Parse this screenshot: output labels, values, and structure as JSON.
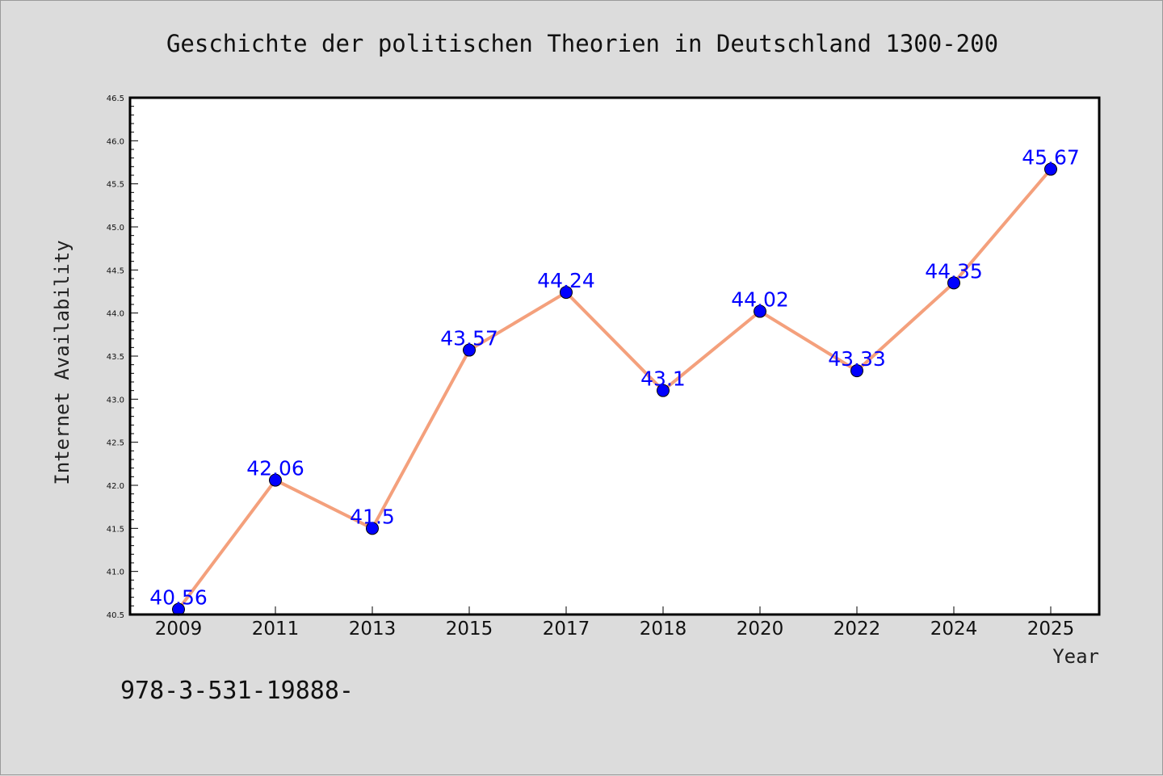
{
  "chart_data": {
    "type": "line",
    "title": "Geschichte der politischen Theorien in Deutschland 1300-200",
    "xlabel": "Year",
    "ylabel": "Internet Availability",
    "categories": [
      "2009",
      "2011",
      "2013",
      "2015",
      "2017",
      "2018",
      "2020",
      "2022",
      "2024",
      "2025"
    ],
    "series": [
      {
        "values": [
          40.56,
          42.06,
          41.5,
          43.57,
          44.24,
          43.1,
          44.02,
          43.33,
          44.35,
          45.67
        ],
        "labels": [
          "40.56",
          "42.06",
          "41.5",
          "43.57",
          "44.24",
          "43.1",
          "44.02",
          "43.33",
          "44.35",
          "45.67"
        ]
      }
    ],
    "ylim": [
      40.5,
      46.5
    ],
    "yticks": [
      "40.5",
      "41.0",
      "41.5",
      "42.0",
      "42.5",
      "43.0",
      "43.5",
      "44.0",
      "44.5",
      "45.0",
      "45.5",
      "46.0",
      "46.5"
    ],
    "grid": false,
    "legend": "none",
    "colors": {
      "line": "#f4a07c",
      "marker": "#0000ff",
      "label": "#0000ff",
      "plot_background": "#ffffff",
      "figure_background": "#dcdcdc"
    }
  },
  "footnote": "978-3-531-19888-"
}
